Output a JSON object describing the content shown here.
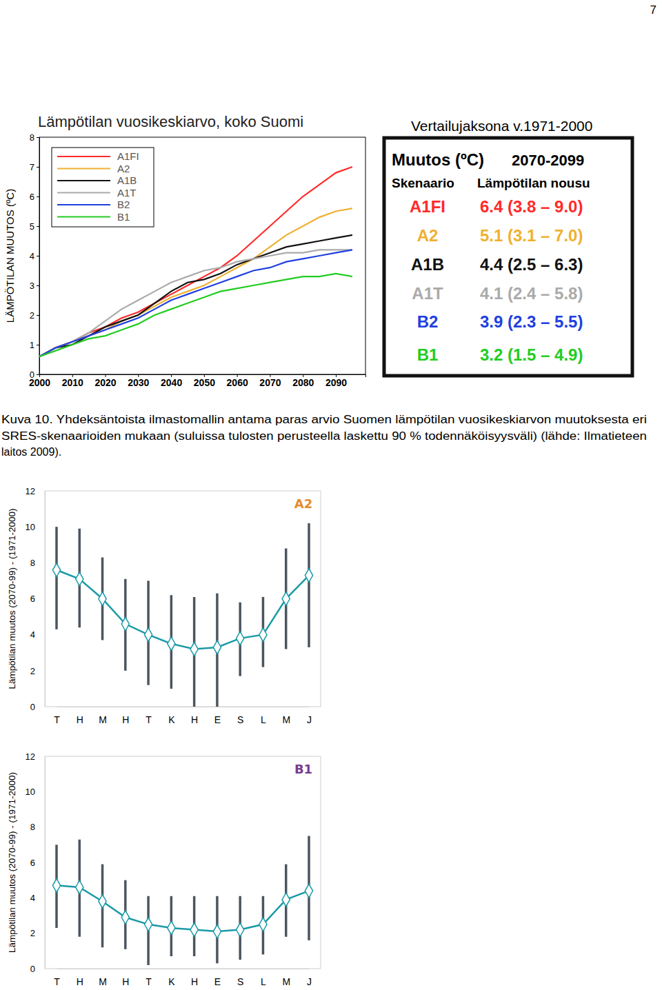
{
  "page": {
    "number": "7",
    "caption": [
      "Kuva 10. Yhdeksäntoista ilmastomallin antama paras arvio Suomen lämpötilan vuosikeskiarvon muutoksesta eri",
      "SRES-skenaarioiden mukaan (suluissa tulosten perusteella laskettu 90 % todennäköisyysväli) (lähde: Ilmatieteen",
      "laitos 2009)."
    ],
    "table": {
      "title": "Vertailujaksona v.1971-2000",
      "header": [
        "Muutos (ºC)",
        "2070-2099"
      ],
      "subheader": [
        "Skenaario",
        "Lämpötilan nousu"
      ],
      "rows": [
        [
          "A1FI",
          "6.4 (3.8 – 9.0)"
        ],
        [
          "A2",
          "5.1 (3.1 – 7.0)"
        ],
        [
          "A1B",
          "4.4 (2.5 – 6.3)"
        ],
        [
          "A1T",
          "4.1 (2.4 – 5.8)"
        ],
        [
          "B2",
          "3.9 (2.3 – 5.5)"
        ],
        [
          "B1",
          "3.2 (1.5 – 4.9)"
        ]
      ]
    }
  },
  "chart_data": [
    {
      "type": "line",
      "title": "Lämpötilan vuosikeskiarvo, koko Suomi",
      "y_label": "LÄMPÖTILAN MUUTOS (ºC)",
      "x": [
        2000,
        2005,
        2010,
        2015,
        2020,
        2025,
        2030,
        2035,
        2040,
        2045,
        2050,
        2055,
        2060,
        2065,
        2070,
        2075,
        2080,
        2085,
        2090,
        2095
      ],
      "series": [
        {
          "name": "A1FI",
          "color": "#ff2a2a",
          "values": [
            0.6,
            0.9,
            1.1,
            1.4,
            1.6,
            1.9,
            2.1,
            2.4,
            2.7,
            3.0,
            3.3,
            3.6,
            4.0,
            4.5,
            5.0,
            5.5,
            6.0,
            6.4,
            6.8,
            7.0
          ]
        },
        {
          "name": "A2",
          "color": "#f0b030",
          "values": [
            0.6,
            0.9,
            1.1,
            1.3,
            1.5,
            1.8,
            2.0,
            2.3,
            2.6,
            2.8,
            3.0,
            3.3,
            3.6,
            3.9,
            4.3,
            4.7,
            5.0,
            5.3,
            5.5,
            5.6
          ]
        },
        {
          "name": "A1B",
          "color": "#111111",
          "values": [
            0.6,
            0.9,
            1.0,
            1.3,
            1.6,
            1.8,
            2.0,
            2.4,
            2.8,
            3.1,
            3.2,
            3.4,
            3.7,
            3.9,
            4.1,
            4.3,
            4.4,
            4.5,
            4.6,
            4.7
          ]
        },
        {
          "name": "A1T",
          "color": "#aaaaaa",
          "values": [
            0.6,
            0.9,
            1.1,
            1.4,
            1.8,
            2.2,
            2.5,
            2.8,
            3.1,
            3.3,
            3.5,
            3.6,
            3.8,
            3.9,
            4.0,
            4.1,
            4.1,
            4.2,
            4.2,
            4.2
          ]
        },
        {
          "name": "B2",
          "color": "#2040e0",
          "values": [
            0.6,
            0.9,
            1.1,
            1.3,
            1.5,
            1.7,
            1.9,
            2.2,
            2.5,
            2.7,
            2.9,
            3.1,
            3.3,
            3.5,
            3.6,
            3.8,
            3.9,
            4.0,
            4.1,
            4.2
          ]
        },
        {
          "name": "B1",
          "color": "#22cc22",
          "values": [
            0.6,
            0.8,
            1.0,
            1.2,
            1.3,
            1.5,
            1.7,
            2.0,
            2.2,
            2.4,
            2.6,
            2.8,
            2.9,
            3.0,
            3.1,
            3.2,
            3.3,
            3.3,
            3.4,
            3.3
          ]
        }
      ],
      "xlim": [
        2000,
        2099
      ],
      "xticks": [
        2000,
        2010,
        2020,
        2030,
        2040,
        2050,
        2060,
        2070,
        2080,
        2090
      ],
      "ylim": [
        0,
        8
      ],
      "yticks": [
        0,
        1,
        2,
        3,
        4,
        5,
        6,
        7,
        8
      ],
      "legend": "upper left"
    },
    {
      "type": "line",
      "title": "A2",
      "y_label": "Lämpötilan muutos (2070-99) - (1971-2000)",
      "categories": [
        "T",
        "H",
        "M",
        "H",
        "T",
        "K",
        "H",
        "E",
        "S",
        "L",
        "M",
        "J"
      ],
      "values": [
        7.6,
        7.1,
        6.0,
        4.6,
        4.0,
        3.5,
        3.2,
        3.3,
        3.8,
        4.0,
        6.0,
        7.3
      ],
      "low": [
        4.3,
        4.4,
        3.7,
        2.0,
        1.2,
        1.0,
        0.0,
        0.0,
        1.7,
        2.2,
        3.2,
        3.3
      ],
      "high": [
        10.0,
        9.9,
        8.3,
        7.1,
        7.0,
        6.2,
        6.1,
        6.3,
        5.8,
        6.1,
        8.8,
        10.2
      ],
      "color": "#1a9aa6",
      "marker": "diamond",
      "ylim": [
        0,
        12
      ],
      "yticks": [
        0,
        2,
        4,
        6,
        8,
        10,
        12
      ]
    },
    {
      "type": "line",
      "title": "B1",
      "y_label": "Lämpötilan muutos (2070-99) - (1971-2000)",
      "categories": [
        "T",
        "H",
        "M",
        "H",
        "T",
        "K",
        "H",
        "E",
        "S",
        "L",
        "M",
        "J"
      ],
      "values": [
        4.7,
        4.6,
        3.8,
        2.9,
        2.5,
        2.3,
        2.2,
        2.1,
        2.2,
        2.5,
        3.9,
        4.4
      ],
      "low": [
        2.3,
        1.8,
        1.2,
        1.1,
        0.2,
        0.7,
        0.7,
        0.3,
        0.5,
        0.8,
        1.8,
        1.6
      ],
      "high": [
        7.0,
        7.3,
        5.9,
        5.0,
        4.1,
        4.1,
        4.1,
        4.1,
        4.1,
        4.1,
        5.9,
        7.5
      ],
      "color": "#1a9aa6",
      "marker": "diamond",
      "ylim": [
        0,
        12
      ],
      "yticks": [
        0,
        2,
        4,
        6,
        8,
        10,
        12
      ]
    }
  ]
}
